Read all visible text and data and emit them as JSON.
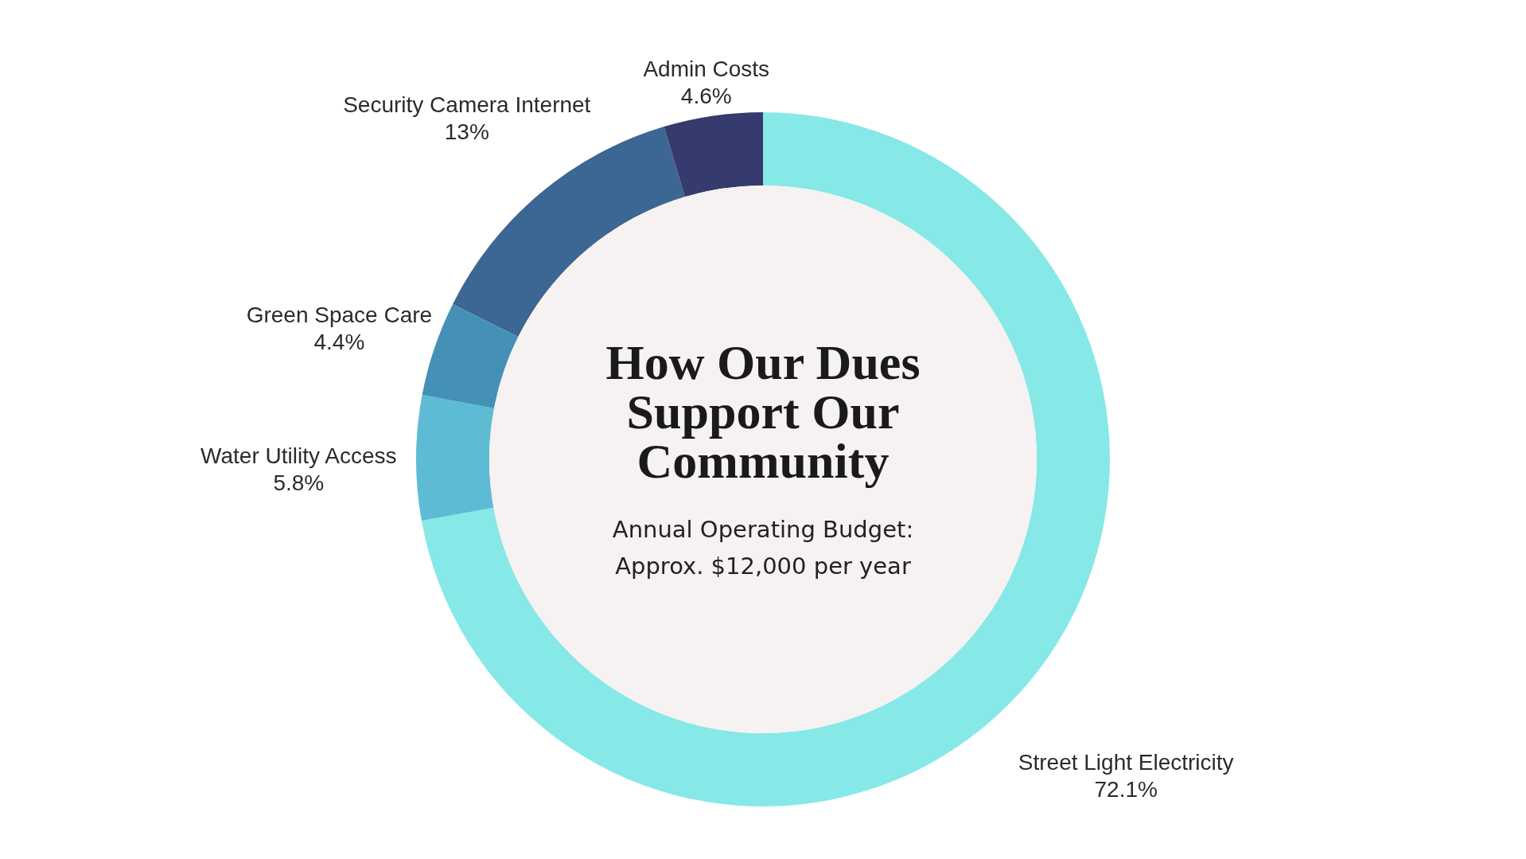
{
  "chart_data": {
    "type": "donut",
    "title": "How Our Dues Support Our Community",
    "subtitle": "Annual Operating Budget: Approx. $12,000 per year",
    "categories": [
      "Street Light Electricity",
      "Water Utility Access",
      "Green Space Care",
      "Security Camera Internet",
      "Admin Costs"
    ],
    "values": [
      72.1,
      5.8,
      4.4,
      13,
      4.6
    ],
    "colors": [
      "#87e8e8",
      "#5dbcd3",
      "#4590b7",
      "#3c6694",
      "#353b6c"
    ],
    "value_labels": [
      "72.1%",
      "5.8%",
      "4.4%",
      "13%",
      "4.6%"
    ]
  }
}
